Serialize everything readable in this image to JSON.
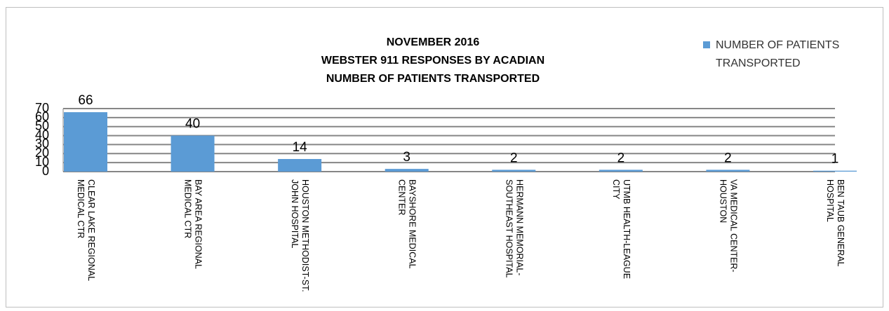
{
  "chart_data": {
    "type": "bar",
    "title": "NOVEMBER 2016\nWEBSTER 911 RESPONSES BY ACADIAN\nNUMBER OF PATIENTS TRANSPORTED",
    "categories": [
      "CLEAR LAKE REGIONAL MEDICAL CTR",
      "BAY AREA REGIONAL MEDICAL CTR",
      "HOUSTON METHODIST-ST. JOHN HOSPITAL",
      "BAYSHORE MEDICAL CENTER",
      "HERMANN MEMORIAL-SOUTHEAST HOSPITAL",
      "UTMB HEALTH-LEAGUE CITY",
      "VA MEDICAL CENTER-HOUSTON",
      "BEN TAUB GENERAL HOSPITAL"
    ],
    "series": [
      {
        "name": "NUMBER OF PATIENTS TRANSPORTED",
        "color": "#5b9bd5",
        "values": [
          66,
          40,
          14,
          3,
          2,
          2,
          2,
          1
        ]
      }
    ],
    "ylim": [
      0,
      70
    ],
    "yticks": [
      0,
      10,
      20,
      30,
      40,
      50,
      60,
      70
    ],
    "grid": true,
    "legend": "top-right"
  }
}
